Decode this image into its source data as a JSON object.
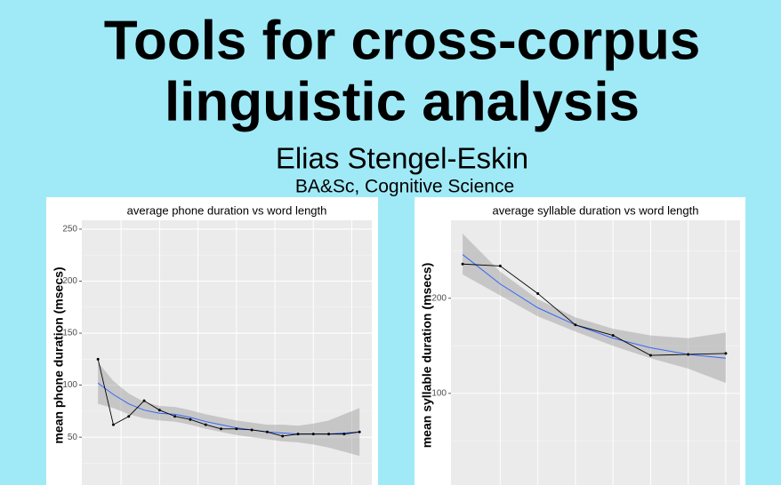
{
  "title_lines": [
    "Tools for cross-corpus",
    "linguistic analysis"
  ],
  "author": "Elias Stengel-Eskin",
  "affiliation": "BA&Sc, Cognitive Science",
  "chart_data": [
    {
      "type": "line",
      "title": "average phone duration vs word length",
      "y_label": "mean phone duration (msecs)",
      "x": [
        1,
        2,
        3,
        4,
        5,
        6,
        7,
        8,
        9,
        10,
        11,
        12,
        13,
        14,
        15,
        16,
        17,
        18
      ],
      "points": [
        125,
        62,
        70,
        85,
        76,
        70,
        67,
        62,
        58,
        58,
        57,
        55,
        51,
        53,
        53,
        53,
        53,
        55
      ],
      "fit": [
        102,
        91,
        82,
        76,
        73,
        72,
        69,
        65,
        62,
        59,
        57,
        55,
        54,
        53,
        53,
        53,
        54,
        55
      ],
      "fit_lower": [
        82,
        78,
        72,
        68,
        66,
        65,
        62,
        58,
        55,
        52,
        50,
        48,
        46,
        45,
        43,
        40,
        36,
        32
      ],
      "fit_upper": [
        122,
        104,
        92,
        84,
        80,
        79,
        76,
        72,
        69,
        66,
        64,
        62,
        62,
        61,
        63,
        66,
        72,
        78
      ],
      "line_color": "#000000",
      "fit_color": "#3366ff",
      "band_color": "#999999",
      "xlim": [
        -0.05,
        18.8
      ],
      "ylim": [
        4,
        258.5
      ],
      "xgrid": [
        2.5,
        5,
        7.5,
        10,
        12.5,
        15,
        17.5
      ],
      "yticks": [
        50,
        100,
        150,
        200,
        250
      ],
      "yminor": [
        25,
        75,
        125,
        175,
        225
      ],
      "grid": true
    },
    {
      "type": "line",
      "title": "average syllable duration vs word length",
      "y_label": "mean syllable duration (msecs)",
      "x": [
        1,
        2,
        3,
        4,
        5,
        6,
        7,
        8
      ],
      "points": [
        236,
        234,
        205,
        172,
        161,
        140,
        141,
        142
      ],
      "fit": [
        246,
        215,
        190,
        172,
        158,
        148,
        141,
        137
      ],
      "fit_lower": [
        225,
        203,
        181,
        165,
        150,
        137,
        126,
        111
      ],
      "fit_upper": [
        268,
        228,
        199,
        180,
        168,
        161,
        158,
        164
      ],
      "line_color": "#000000",
      "fit_color": "#3366ff",
      "band_color": "#999999",
      "xlim": [
        0.69,
        8.38
      ],
      "ylim": [
        3.7,
        282
      ],
      "xgrid": [
        2,
        3,
        4,
        5,
        6,
        7,
        8
      ],
      "yticks": [
        100,
        200
      ],
      "yminor": [
        50,
        150,
        250
      ],
      "grid": true
    }
  ]
}
